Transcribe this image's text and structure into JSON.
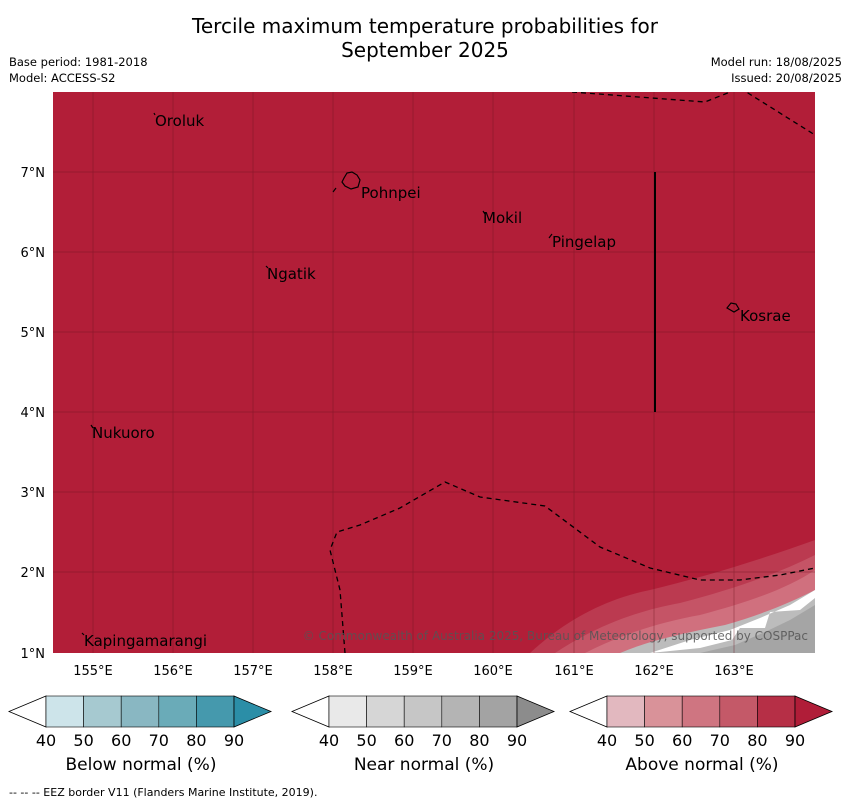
{
  "header": {
    "title_line1": "Tercile maximum temperature probabilities for",
    "title_line2": "September 2025",
    "base_period": "Base period: 1981-2018",
    "model": "Model: ACCESS-S2",
    "model_run": "Model run: 18/08/2025",
    "issued": "Issued: 20/08/2025"
  },
  "map": {
    "lat_labels": [
      "7°N",
      "6°N",
      "5°N",
      "4°N",
      "3°N",
      "2°N",
      "1°N"
    ],
    "lon_labels": [
      "155°E",
      "156°E",
      "157°E",
      "158°E",
      "159°E",
      "160°E",
      "161°E",
      "162°E",
      "163°E"
    ],
    "places": [
      "Oroluk",
      "Pohnpei",
      "Mokil",
      "Pingelap",
      "Ngatik",
      "Kosrae",
      "Nukuoro",
      "Kapingamarangi"
    ],
    "copyright": "© Commonwealth of Australia 2025, Bureau of Meteorology, supported by COSPPac",
    "fill_color": "#b21e38"
  },
  "colorbars": {
    "ticks": [
      "40",
      "50",
      "60",
      "70",
      "80",
      "90"
    ],
    "below": {
      "label": "Below normal (%)",
      "colors": [
        "#ffffff",
        "#cde4ea",
        "#a6c9d0",
        "#89b7c2",
        "#6aabb8",
        "#4599ad",
        "#2b8ea7"
      ]
    },
    "near": {
      "label": "Near normal (%)",
      "colors": [
        "#ffffff",
        "#e9e9e9",
        "#d6d6d6",
        "#c6c6c6",
        "#b4b4b4",
        "#a3a3a3",
        "#8c8c8c"
      ]
    },
    "above": {
      "label": "Above normal (%)",
      "colors": [
        "#ffffff",
        "#e2b8bf",
        "#d99299",
        "#cf7581",
        "#c45968",
        "#b62f46",
        "#b01d38"
      ]
    }
  },
  "footnote": "--  --  -- EEZ border V11 (Flanders Marine Institute, 2019)."
}
